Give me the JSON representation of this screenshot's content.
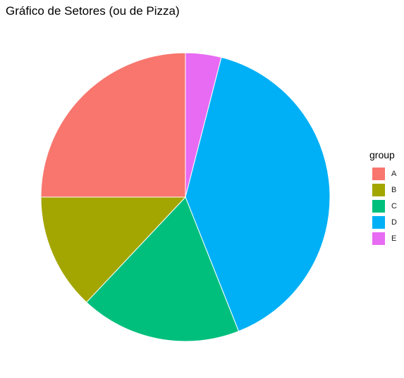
{
  "chart_data": {
    "type": "pie",
    "title": "Gráfico de Setores (ou de Pizza)",
    "legend_title": "group",
    "legend_position": "right",
    "start_angle": "12 o'clock",
    "direction": "clockwise",
    "categories": [
      "A",
      "B",
      "C",
      "D",
      "E"
    ],
    "values": [
      25,
      13,
      18,
      40,
      4
    ],
    "colors": [
      "#F8766D",
      "#A3A500",
      "#00BF7D",
      "#00B0F6",
      "#E76BF3"
    ],
    "slice_order_clockwise_from_top": [
      "E",
      "D",
      "C",
      "B",
      "A"
    ]
  }
}
